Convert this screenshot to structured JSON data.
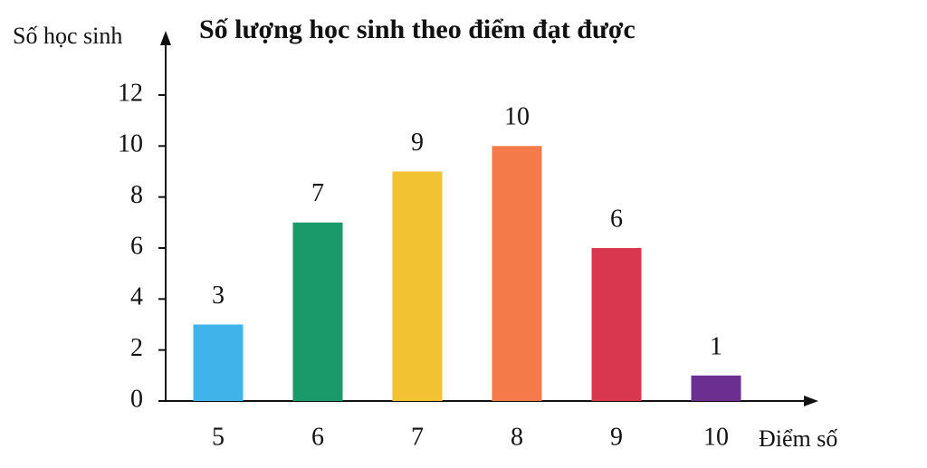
{
  "chart_data": {
    "type": "bar",
    "title": "Số lượng học sinh theo điểm đạt được",
    "y_label": "Số học sinh",
    "x_label": "Điểm số",
    "categories": [
      "5",
      "6",
      "7",
      "8",
      "9",
      "10"
    ],
    "values": [
      3,
      7,
      9,
      10,
      6,
      1
    ],
    "colors": [
      "#3fb3ea",
      "#1a9a6b",
      "#f2c233",
      "#f47a4a",
      "#d8374f",
      "#6a2f91"
    ],
    "ylim": [
      0,
      14
    ],
    "yticks": [
      0,
      2,
      4,
      6,
      8,
      10,
      12
    ],
    "grid": false
  }
}
